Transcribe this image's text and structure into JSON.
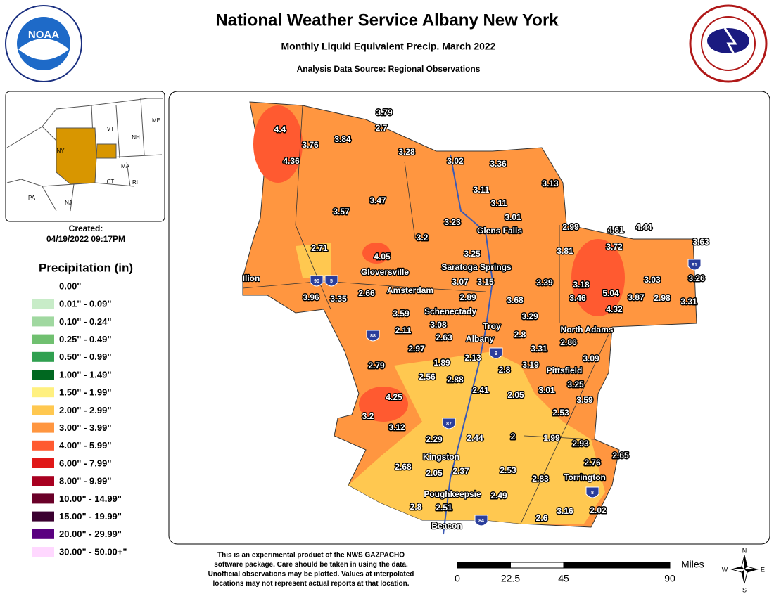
{
  "header": {
    "title": "National Weather Service Albany New York",
    "subtitle": "Monthly Liquid Equivalent Precip. March 2022",
    "source": "Analysis Data Source: Regional Observations"
  },
  "logo": {
    "text": "NOAA"
  },
  "inset": {
    "labels": [
      "ME",
      "VT",
      "NH",
      "NY",
      "MA",
      "CT",
      "RI",
      "PA",
      "NJ"
    ]
  },
  "created": {
    "label": "Created:",
    "timestamp": "04/19/2022 09:17PM"
  },
  "legend": {
    "title": "Precipitation (in)",
    "items": [
      {
        "label": "0.00\"",
        "color": "#ffffff"
      },
      {
        "label": "0.01\" - 0.09\"",
        "color": "#c8ecc8"
      },
      {
        "label": "0.10\" - 0.24\"",
        "color": "#a0d8a0"
      },
      {
        "label": "0.25\" - 0.49\"",
        "color": "#70c070"
      },
      {
        "label": "0.50\" - 0.99\"",
        "color": "#30a050"
      },
      {
        "label": "1.00\" - 1.49\"",
        "color": "#006820"
      },
      {
        "label": "1.50\" - 1.99\"",
        "color": "#fff080"
      },
      {
        "label": "2.00\" - 2.99\"",
        "color": "#ffc850"
      },
      {
        "label": "3.00\" - 3.99\"",
        "color": "#ff9640"
      },
      {
        "label": "4.00\" - 5.99\"",
        "color": "#ff5a30"
      },
      {
        "label": "6.00\" - 7.99\"",
        "color": "#e01818"
      },
      {
        "label": "8.00\" - 9.99\"",
        "color": "#a80020"
      },
      {
        "label": "10.00\" - 14.99\"",
        "color": "#6a0028"
      },
      {
        "label": "15.00\" - 19.99\"",
        "color": "#3a0030"
      },
      {
        "label": "20.00\" - 29.99\"",
        "color": "#5a0080"
      },
      {
        "label": "30.00\" - 50.00+\"",
        "color": "#ffd8ff"
      }
    ]
  },
  "map": {
    "cities": [
      "Glens Falls",
      "Gloversville",
      "Saratoga Springs",
      "Ilion",
      "Amsterdam",
      "Schenectady",
      "Troy",
      "Albany",
      "North Adams",
      "Pittsfield",
      "Kingston",
      "Torrington",
      "Poughkeepsie",
      "Beacon"
    ],
    "shields": [
      "90",
      "5",
      "88",
      "9",
      "87",
      "84",
      "91",
      "8"
    ],
    "stations": [
      4.4,
      3.76,
      3.84,
      3.79,
      2.7,
      3.28,
      4.36,
      3.02,
      3.36,
      3.13,
      3.47,
      3.11,
      3.11,
      3.57,
      3.01,
      3.23,
      3.2,
      2.99,
      4.61,
      4.44,
      3.63,
      2.71,
      4.05,
      3.25,
      3.81,
      3.72,
      3.07,
      3.15,
      3.39,
      3.18,
      3.03,
      3.26,
      3.96,
      3.35,
      2.66,
      2.89,
      3.68,
      3.46,
      5.04,
      3.87,
      2.98,
      3.31,
      4.32,
      3.59,
      3.29,
      3.08,
      2.11,
      2.63,
      2.8,
      2.86,
      2.97,
      3.31,
      1.89,
      2.13,
      3.09,
      2.79,
      3.19,
      2.8,
      2.56,
      2.88,
      3.25,
      2.41,
      2.05,
      3.01,
      4.25,
      3.59,
      2.53,
      3.2,
      3.12,
      2.29,
      2.44,
      2,
      1.99,
      2.93,
      2.65,
      2.76,
      2.68,
      2.05,
      2.37,
      2.53,
      2.83,
      2.49,
      2.8,
      2.51,
      3.16,
      2.02,
      2.6
    ]
  },
  "scale": {
    "unit": "Miles",
    "ticks": [
      0,
      22.5,
      45,
      90
    ]
  },
  "compass": [
    "N",
    "E",
    "S",
    "W"
  ],
  "disclaimer": [
    "This is an experimental product of the NWS GAZPACHO",
    "software package. Care should be taken in using the data.",
    "Unofficial observations may be plotted. Values at interpolated",
    "locations may not represent actual reports at that location."
  ]
}
